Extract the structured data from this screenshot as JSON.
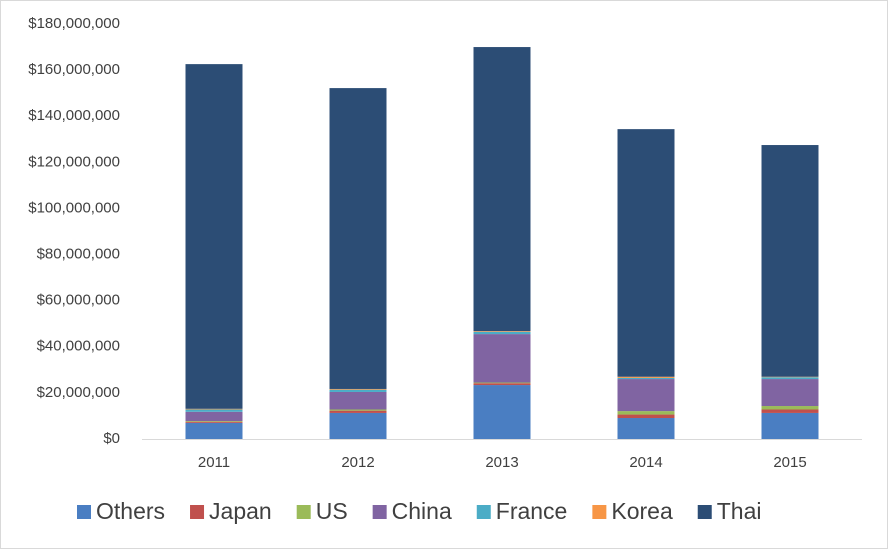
{
  "chart_data": {
    "type": "stacked-bar",
    "categories": [
      "2011",
      "2012",
      "2013",
      "2014",
      "2015"
    ],
    "series": [
      {
        "name": "Others",
        "color": "#4a7ec2",
        "values": [
          7,
          11.3,
          23.4,
          9.1,
          11.3
        ]
      },
      {
        "name": "Japan",
        "color": "#c0504d",
        "values": [
          0.5,
          1,
          0.8,
          1.5,
          1.5
        ]
      },
      {
        "name": "US",
        "color": "#9bbb59",
        "values": [
          0.3,
          0.5,
          0.3,
          1.5,
          1.5
        ]
      },
      {
        "name": "China",
        "color": "#8064a2",
        "values": [
          4,
          7.6,
          21,
          13.9,
          11.7
        ]
      },
      {
        "name": "France",
        "color": "#4bacc6",
        "values": [
          1,
          1,
          1,
          0.5,
          0.8
        ]
      },
      {
        "name": "Korea",
        "color": "#f79646",
        "values": [
          0.3,
          0.3,
          0.3,
          0.5,
          0.2
        ]
      },
      {
        "name": "Thai",
        "color": "#2c4d75",
        "values": [
          149.5,
          130.5,
          123.2,
          107.4,
          100.5
        ]
      }
    ],
    "ylim": [
      0,
      180
    ],
    "yticks": [
      {
        "value": 0,
        "label": "$0"
      },
      {
        "value": 20,
        "label": "$20,000,000"
      },
      {
        "value": 40,
        "label": "$40,000,000"
      },
      {
        "value": 60,
        "label": "$60,000,000"
      },
      {
        "value": 80,
        "label": "$80,000,000"
      },
      {
        "value": 100,
        "label": "$100,000,000"
      },
      {
        "value": 120,
        "label": "$120,000,000"
      },
      {
        "value": 140,
        "label": "$140,000,000"
      },
      {
        "value": 160,
        "label": "$160,000,000"
      },
      {
        "value": 180,
        "label": "$180,000,000"
      }
    ],
    "grid": false,
    "legend": "bottom"
  }
}
